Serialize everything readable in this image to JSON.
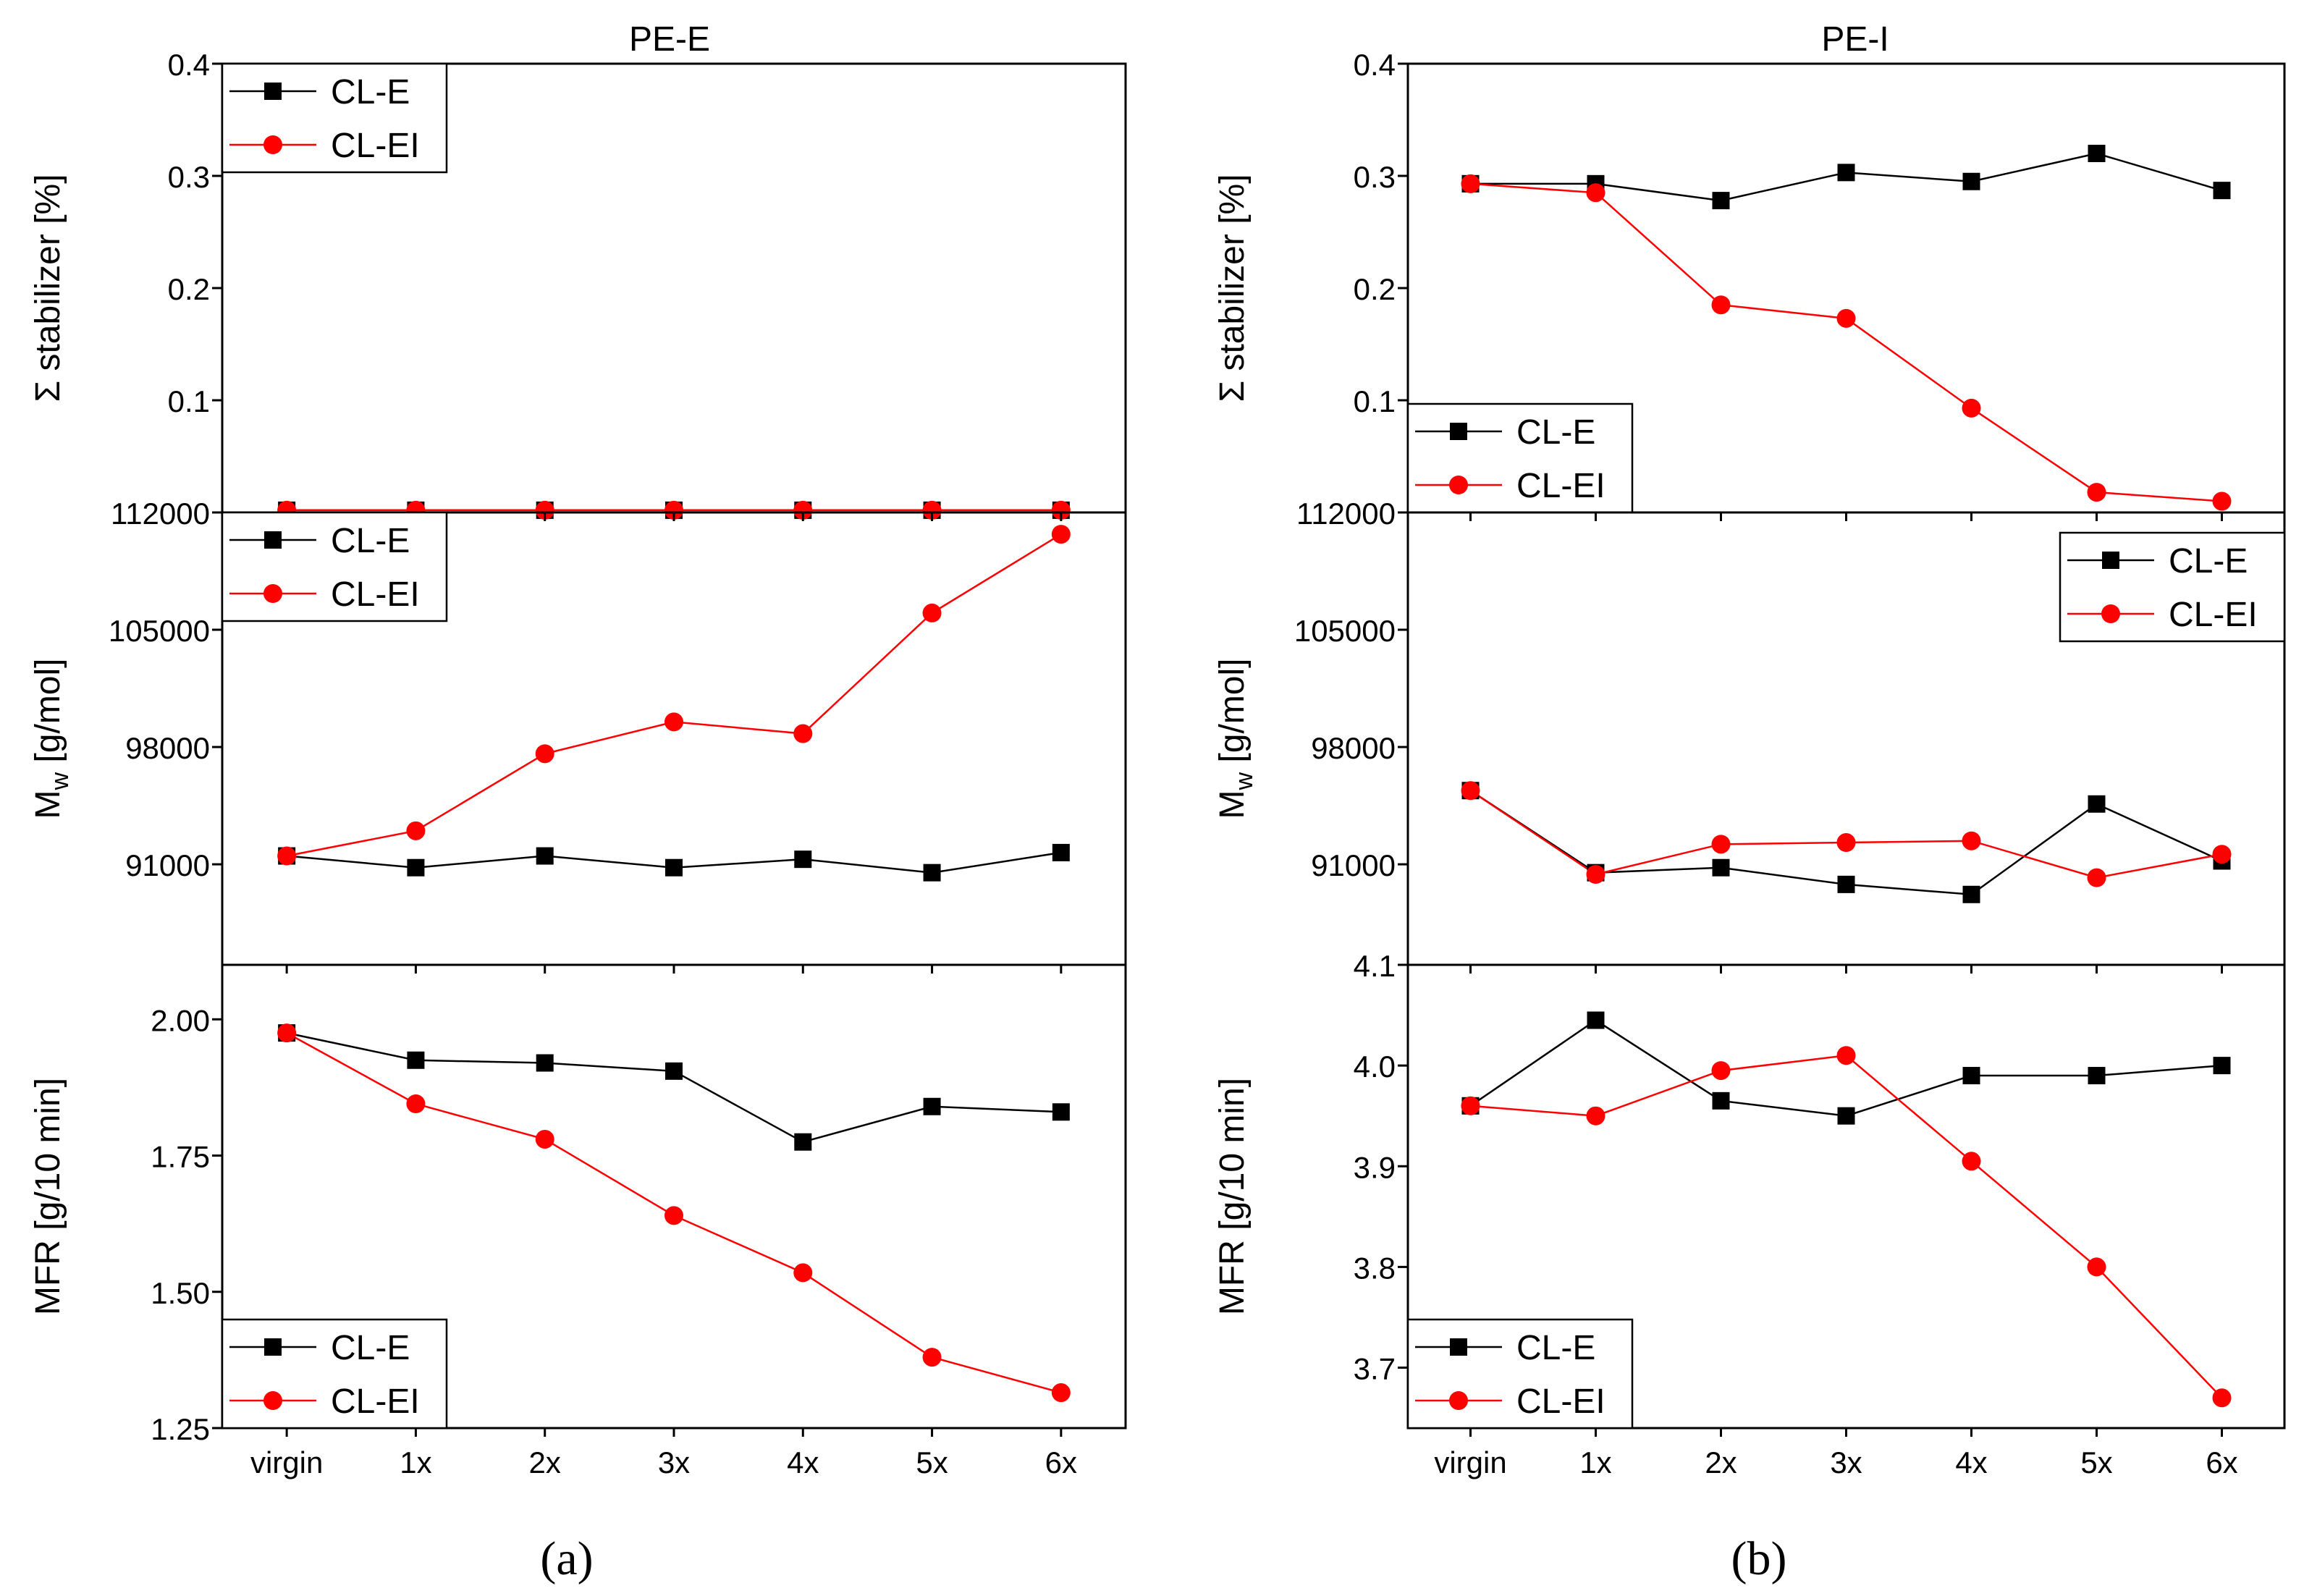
{
  "colors": {
    "series1": "#000000",
    "series2": "#ff0000",
    "axis": "#000000",
    "background": "#ffffff"
  },
  "chart_data": [
    {
      "type": "line",
      "panel": "a",
      "title": "PE-E",
      "xlabel": "",
      "categories": [
        "virgin",
        "1x",
        "2x",
        "3x",
        "4x",
        "5x",
        "6x"
      ],
      "subplots": [
        {
          "id": "stab",
          "ylabel": "Σ stabilizer [%]",
          "ylabel_sub": "",
          "ylabel_post": "",
          "ylim": [
            0.0,
            0.4
          ],
          "yticks": [
            0.1,
            0.2,
            0.3,
            0.4
          ],
          "ytick_labels": [
            "0.1",
            "0.2",
            "0.3",
            "0.4"
          ],
          "legend": "top-left",
          "series": [
            {
              "name": "CL-E",
              "marker": "square",
              "values": [
                0.002,
                0.002,
                0.002,
                0.002,
                0.002,
                0.002,
                0.002
              ]
            },
            {
              "name": "CL-EI",
              "marker": "circle",
              "values": [
                0.002,
                0.002,
                0.002,
                0.002,
                0.002,
                0.002,
                0.002
              ]
            }
          ]
        },
        {
          "id": "mw",
          "ylabel": "M",
          "ylabel_sub": "w",
          "ylabel_post": " [g/mol]",
          "ylim": [
            85000,
            112000
          ],
          "yticks": [
            91000,
            98000,
            105000,
            112000
          ],
          "ytick_labels": [
            "91000",
            "98000",
            "105000",
            "112000"
          ],
          "legend": "top-left",
          "series": [
            {
              "name": "CL-E",
              "marker": "square",
              "values": [
                91500,
                90800,
                91500,
                90800,
                91300,
                90500,
                91700
              ]
            },
            {
              "name": "CL-EI",
              "marker": "circle",
              "values": [
                91500,
                93000,
                97600,
                99500,
                98800,
                106000,
                110700
              ]
            }
          ]
        },
        {
          "id": "mfr",
          "ylabel": "MFR [g/10 min]",
          "ylabel_sub": "",
          "ylabel_post": "",
          "ylim": [
            1.25,
            2.1
          ],
          "yticks": [
            1.25,
            1.5,
            1.75,
            2.0
          ],
          "ytick_labels": [
            "1.25",
            "1.50",
            "1.75",
            "2.00"
          ],
          "legend": "bottom-left",
          "series": [
            {
              "name": "CL-E",
              "marker": "square",
              "values": [
                1.975,
                1.925,
                1.92,
                1.905,
                1.775,
                1.84,
                1.83
              ]
            },
            {
              "name": "CL-EI",
              "marker": "circle",
              "values": [
                1.975,
                1.845,
                1.78,
                1.64,
                1.535,
                1.38,
                1.315
              ]
            }
          ]
        }
      ]
    },
    {
      "type": "line",
      "panel": "b",
      "title": "PE-I",
      "xlabel": "",
      "categories": [
        "virgin",
        "1x",
        "2x",
        "3x",
        "4x",
        "5x",
        "6x"
      ],
      "subplots": [
        {
          "id": "stab",
          "ylabel": "Σ stabilizer [%]",
          "ylabel_sub": "",
          "ylabel_post": "",
          "ylim": [
            0.0,
            0.4
          ],
          "yticks": [
            0.1,
            0.2,
            0.3,
            0.4
          ],
          "ytick_labels": [
            "0.1",
            "0.2",
            "0.3",
            "0.4"
          ],
          "legend": "bottom-left",
          "series": [
            {
              "name": "CL-E",
              "marker": "square",
              "values": [
                0.293,
                0.293,
                0.278,
                0.303,
                0.295,
                0.32,
                0.287
              ]
            },
            {
              "name": "CL-EI",
              "marker": "circle",
              "values": [
                0.293,
                0.285,
                0.185,
                0.173,
                0.093,
                0.018,
                0.01
              ]
            }
          ]
        },
        {
          "id": "mw",
          "ylabel": "M",
          "ylabel_sub": "w",
          "ylabel_post": " [g/mol]",
          "ylim": [
            85000,
            112000
          ],
          "yticks": [
            91000,
            98000,
            105000,
            112000
          ],
          "ytick_labels": [
            "91000",
            "98000",
            "105000",
            "112000"
          ],
          "legend": "top-right",
          "series": [
            {
              "name": "CL-E",
              "marker": "square",
              "values": [
                95400,
                90500,
                90800,
                89800,
                89200,
                94600,
                91200
              ]
            },
            {
              "name": "CL-EI",
              "marker": "circle",
              "values": [
                95400,
                90400,
                92200,
                92300,
                92400,
                90200,
                91600
              ]
            }
          ]
        },
        {
          "id": "mfr",
          "ylabel": "MFR [g/10 min]",
          "ylabel_sub": "",
          "ylabel_post": "",
          "ylim": [
            3.64,
            4.1
          ],
          "yticks": [
            3.7,
            3.8,
            3.9,
            4.0,
            4.1
          ],
          "ytick_labels": [
            "3.7",
            "3.8",
            "3.9",
            "4.0",
            "4.1"
          ],
          "legend": "bottom-left",
          "series": [
            {
              "name": "CL-E",
              "marker": "square",
              "values": [
                3.96,
                4.045,
                3.965,
                3.95,
                3.99,
                3.99,
                4.0
              ]
            },
            {
              "name": "CL-EI",
              "marker": "circle",
              "values": [
                3.96,
                3.95,
                3.995,
                4.01,
                3.905,
                3.8,
                3.67
              ]
            }
          ]
        }
      ]
    }
  ],
  "captions": {
    "a": "(a)",
    "b": "(b)"
  }
}
